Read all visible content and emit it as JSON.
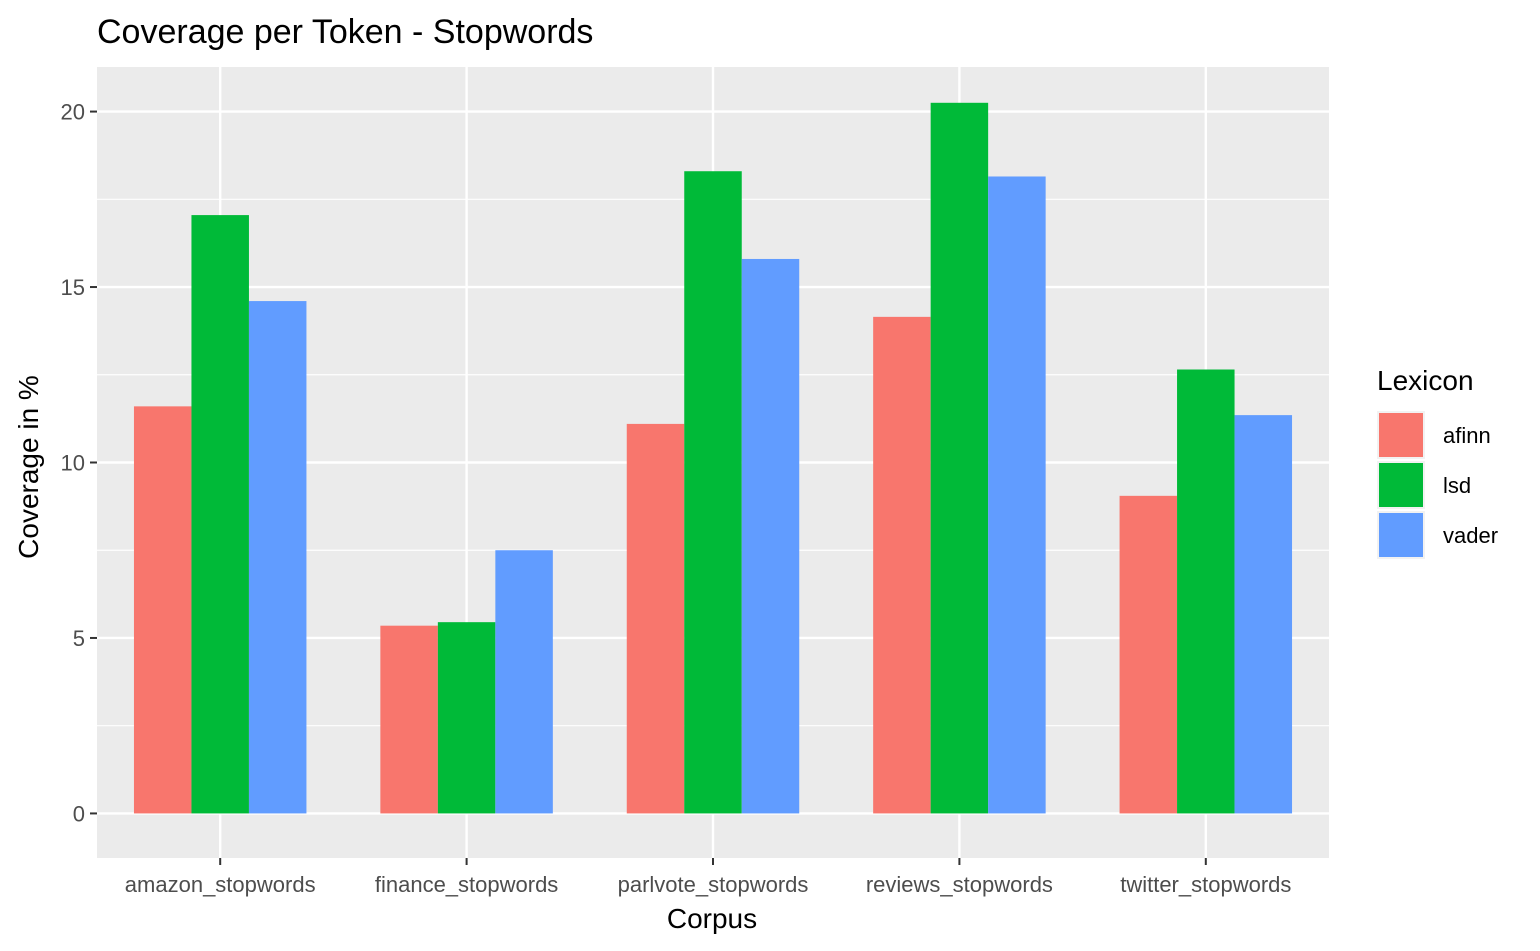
{
  "chart_data": {
    "type": "bar",
    "title": "Coverage per Token - Stopwords",
    "xlabel": "Corpus",
    "ylabel": "Coverage in %",
    "categories": [
      "amazon_stopwords",
      "finance_stopwords",
      "parlvote_stopwords",
      "reviews_stopwords",
      "twitter_stopwords"
    ],
    "series": [
      {
        "name": "afinn",
        "color": "#F8766D",
        "values": [
          11.6,
          5.35,
          11.1,
          14.15,
          9.05
        ]
      },
      {
        "name": "lsd",
        "color": "#00BA38",
        "values": [
          17.05,
          5.45,
          18.3,
          20.25,
          12.65
        ]
      },
      {
        "name": "vader",
        "color": "#619CFF",
        "values": [
          14.6,
          7.5,
          15.8,
          18.15,
          11.35
        ]
      }
    ],
    "ylim": [
      -1.27,
      21.27
    ],
    "yticks": [
      0,
      5,
      10,
      15,
      20
    ],
    "ytick_labels": [
      "0",
      "5",
      "10",
      "15",
      "20"
    ],
    "legend": {
      "title": "Lexicon",
      "position": "right"
    },
    "grid": true,
    "panel_background": "#EBEBEB"
  }
}
